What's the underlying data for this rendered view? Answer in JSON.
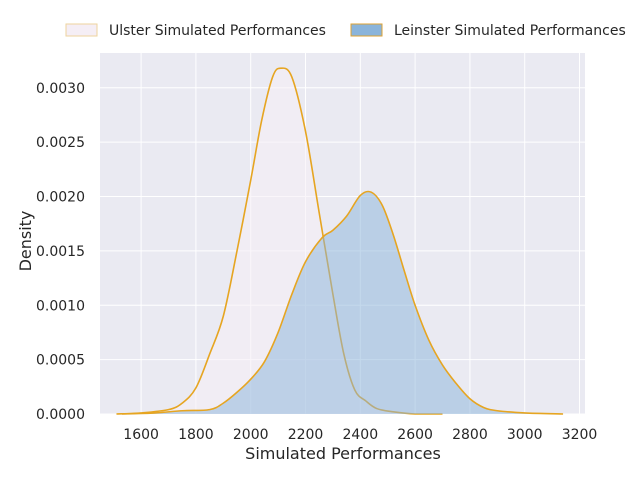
{
  "chart_data": {
    "type": "area",
    "xlabel": "Simulated Performances",
    "ylabel": "Density",
    "xlim": [
      1450,
      3220
    ],
    "ylim": [
      0,
      0.00332
    ],
    "xticks": [
      1600,
      1800,
      2000,
      2200,
      2400,
      2600,
      2800,
      3000,
      3200
    ],
    "yticks": [
      0,
      0.0005,
      0.001,
      0.0015,
      0.002,
      0.0025,
      0.003
    ],
    "ytick_labels": [
      "0.0000",
      "0.0005",
      "0.0010",
      "0.0015",
      "0.0020",
      "0.0025",
      "0.0030"
    ],
    "grid": true,
    "legend_position": "top-center",
    "series": [
      {
        "name": "Ulster Simulated Performances",
        "fill": "#f5eef5",
        "fill_opacity": 0.55,
        "line": "#e6a521",
        "legend_edge": "#eed39d",
        "points": [
          [
            1510,
            0.0
          ],
          [
            1600,
            1e-05
          ],
          [
            1700,
            4e-05
          ],
          [
            1750,
            0.0001
          ],
          [
            1800,
            0.00024
          ],
          [
            1850,
            0.00055
          ],
          [
            1900,
            0.0009
          ],
          [
            1950,
            0.0015
          ],
          [
            2000,
            0.00215
          ],
          [
            2040,
            0.0027
          ],
          [
            2080,
            0.0031
          ],
          [
            2110,
            0.00318
          ],
          [
            2150,
            0.0031
          ],
          [
            2200,
            0.0026
          ],
          [
            2250,
            0.00185
          ],
          [
            2300,
            0.0011
          ],
          [
            2340,
            0.00055
          ],
          [
            2380,
            0.00022
          ],
          [
            2420,
            0.00012
          ],
          [
            2460,
            5e-05
          ],
          [
            2520,
            2e-05
          ],
          [
            2600,
            0.0
          ],
          [
            2700,
            0.0
          ]
        ]
      },
      {
        "name": "Leinster Simulated Performances",
        "fill": "#8ab4da",
        "fill_opacity": 0.5,
        "line": "#e6a521",
        "legend_edge": "#dca233",
        "points": [
          [
            1530,
            0.0
          ],
          [
            1650,
            1e-05
          ],
          [
            1750,
            3e-05
          ],
          [
            1850,
            4e-05
          ],
          [
            1900,
            0.0001
          ],
          [
            1950,
            0.0002
          ],
          [
            2000,
            0.00032
          ],
          [
            2050,
            0.00048
          ],
          [
            2100,
            0.00075
          ],
          [
            2150,
            0.0011
          ],
          [
            2200,
            0.0014
          ],
          [
            2260,
            0.00162
          ],
          [
            2300,
            0.00169
          ],
          [
            2350,
            0.00182
          ],
          [
            2400,
            0.00201
          ],
          [
            2440,
            0.00204
          ],
          [
            2480,
            0.00192
          ],
          [
            2520,
            0.00165
          ],
          [
            2560,
            0.00132
          ],
          [
            2600,
            0.001
          ],
          [
            2650,
            0.00068
          ],
          [
            2700,
            0.00045
          ],
          [
            2750,
            0.00028
          ],
          [
            2800,
            0.00014
          ],
          [
            2850,
            6e-05
          ],
          [
            2900,
            3e-05
          ],
          [
            3000,
            1e-05
          ],
          [
            3140,
            0.0
          ]
        ]
      }
    ]
  }
}
